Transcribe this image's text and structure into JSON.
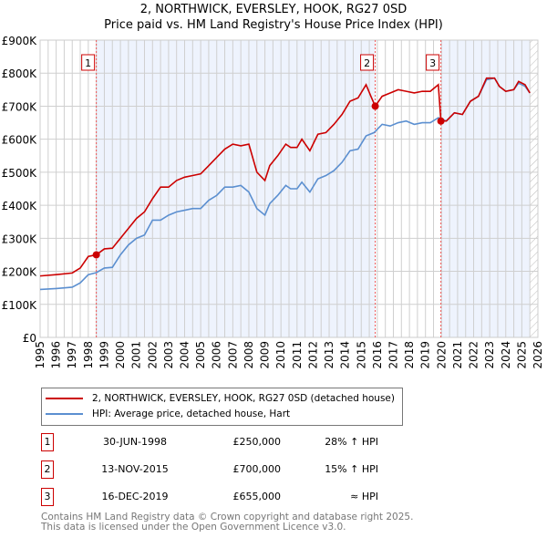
{
  "title_line1": "2, NORTHWICK, EVERSLEY, HOOK, RG27 0SD",
  "title_line2": "Price paid vs. HM Land Registry's House Price Index (HPI)",
  "chart_data": {
    "type": "line",
    "title": "2, NORTHWICK, EVERSLEY, HOOK, RG27 0SD - Price paid vs. HM Land Registry's House Price Index (HPI)",
    "xlim": [
      1995,
      2026
    ],
    "ylim": [
      0,
      900000
    ],
    "x_ticks": [
      "1995",
      "1996",
      "1997",
      "1998",
      "1999",
      "2000",
      "2001",
      "2002",
      "2003",
      "2004",
      "2005",
      "2006",
      "2007",
      "2008",
      "2009",
      "2010",
      "2011",
      "2012",
      "2013",
      "2014",
      "2015",
      "2016",
      "2017",
      "2018",
      "2019",
      "2020",
      "2021",
      "2022",
      "2023",
      "2024",
      "2025",
      "2026"
    ],
    "y_ticks": [
      {
        "v": 0,
        "label": "£0"
      },
      {
        "v": 100000,
        "label": "£100K"
      },
      {
        "v": 200000,
        "label": "£200K"
      },
      {
        "v": 300000,
        "label": "£300K"
      },
      {
        "v": 400000,
        "label": "£400K"
      },
      {
        "v": 500000,
        "label": "£500K"
      },
      {
        "v": 600000,
        "label": "£600K"
      },
      {
        "v": 700000,
        "label": "£700K"
      },
      {
        "v": 800000,
        "label": "£800K"
      },
      {
        "v": 900000,
        "label": "£900K"
      }
    ],
    "grid": true,
    "series": [
      {
        "name": "2, NORTHWICK, EVERSLEY, HOOK, RG27 0SD (detached house)",
        "color": "#cc0000",
        "points": [
          [
            1995,
            186
          ],
          [
            1996,
            190
          ],
          [
            1997,
            195
          ],
          [
            1997.5,
            210
          ],
          [
            1998,
            245
          ],
          [
            1998.5,
            250
          ],
          [
            1999,
            268
          ],
          [
            1999.5,
            270
          ],
          [
            2000,
            300
          ],
          [
            2000.5,
            330
          ],
          [
            2001,
            360
          ],
          [
            2001.5,
            380
          ],
          [
            2002,
            420
          ],
          [
            2002.5,
            455
          ],
          [
            2003,
            455
          ],
          [
            2003.5,
            475
          ],
          [
            2004,
            485
          ],
          [
            2004.5,
            490
          ],
          [
            2005,
            495
          ],
          [
            2005.5,
            520
          ],
          [
            2006,
            545
          ],
          [
            2006.5,
            570
          ],
          [
            2007,
            585
          ],
          [
            2007.5,
            580
          ],
          [
            2008,
            585
          ],
          [
            2008.5,
            500
          ],
          [
            2009,
            475
          ],
          [
            2009.3,
            520
          ],
          [
            2009.8,
            550
          ],
          [
            2010.3,
            585
          ],
          [
            2010.6,
            575
          ],
          [
            2011,
            575
          ],
          [
            2011.3,
            600
          ],
          [
            2011.8,
            565
          ],
          [
            2012.3,
            615
          ],
          [
            2012.8,
            620
          ],
          [
            2013.3,
            645
          ],
          [
            2013.8,
            675
          ],
          [
            2014.3,
            715
          ],
          [
            2014.8,
            725
          ],
          [
            2015.3,
            765
          ],
          [
            2015.6,
            730
          ],
          [
            2015.87,
            700
          ],
          [
            2016.3,
            730
          ],
          [
            2016.8,
            740
          ],
          [
            2017.3,
            750
          ],
          [
            2017.8,
            745
          ],
          [
            2018.3,
            740
          ],
          [
            2018.8,
            745
          ],
          [
            2019.3,
            745
          ],
          [
            2019.8,
            765
          ],
          [
            2019.96,
            655
          ],
          [
            2020.3,
            655
          ],
          [
            2020.8,
            680
          ],
          [
            2021.3,
            675
          ],
          [
            2021.8,
            715
          ],
          [
            2022.3,
            730
          ],
          [
            2022.8,
            785
          ],
          [
            2023.3,
            785
          ],
          [
            2023.6,
            760
          ],
          [
            2024,
            745
          ],
          [
            2024.5,
            750
          ],
          [
            2024.8,
            775
          ],
          [
            2025.2,
            765
          ],
          [
            2025.5,
            740
          ]
        ]
      },
      {
        "name": "HPI: Average price, detached house, Hart",
        "color": "#5b8fd0",
        "points": [
          [
            1995,
            145
          ],
          [
            1996,
            148
          ],
          [
            1997,
            152
          ],
          [
            1997.5,
            165
          ],
          [
            1998,
            190
          ],
          [
            1998.5,
            196
          ],
          [
            1999,
            210
          ],
          [
            1999.5,
            212
          ],
          [
            2000,
            250
          ],
          [
            2000.5,
            280
          ],
          [
            2001,
            300
          ],
          [
            2001.5,
            310
          ],
          [
            2002,
            355
          ],
          [
            2002.5,
            355
          ],
          [
            2003,
            370
          ],
          [
            2003.5,
            380
          ],
          [
            2004,
            385
          ],
          [
            2004.5,
            390
          ],
          [
            2005,
            390
          ],
          [
            2005.5,
            415
          ],
          [
            2006,
            430
          ],
          [
            2006.5,
            455
          ],
          [
            2007,
            455
          ],
          [
            2007.5,
            460
          ],
          [
            2008,
            440
          ],
          [
            2008.5,
            390
          ],
          [
            2009,
            370
          ],
          [
            2009.3,
            405
          ],
          [
            2009.8,
            430
          ],
          [
            2010.3,
            460
          ],
          [
            2010.6,
            450
          ],
          [
            2011,
            450
          ],
          [
            2011.3,
            470
          ],
          [
            2011.8,
            440
          ],
          [
            2012.3,
            480
          ],
          [
            2012.8,
            490
          ],
          [
            2013.3,
            505
          ],
          [
            2013.8,
            530
          ],
          [
            2014.3,
            565
          ],
          [
            2014.8,
            570
          ],
          [
            2015.3,
            610
          ],
          [
            2015.8,
            620
          ],
          [
            2016.3,
            645
          ],
          [
            2016.8,
            640
          ],
          [
            2017.3,
            650
          ],
          [
            2017.8,
            655
          ],
          [
            2018.3,
            645
          ],
          [
            2018.8,
            650
          ],
          [
            2019.3,
            650
          ],
          [
            2019.8,
            665
          ],
          [
            2020.3,
            655
          ],
          [
            2020.8,
            680
          ],
          [
            2021.3,
            675
          ],
          [
            2021.8,
            715
          ],
          [
            2022.3,
            730
          ],
          [
            2022.8,
            780
          ],
          [
            2023.3,
            785
          ],
          [
            2023.6,
            760
          ],
          [
            2024,
            745
          ],
          [
            2024.5,
            750
          ],
          [
            2024.8,
            770
          ],
          [
            2025.2,
            760
          ],
          [
            2025.5,
            740
          ]
        ]
      }
    ],
    "value_unit": "£ thousands",
    "sales": [
      {
        "label": "1",
        "x": 1998.5,
        "value": 250
      },
      {
        "label": "2",
        "x": 2015.87,
        "value": 700
      },
      {
        "label": "3",
        "x": 2019.96,
        "value": 655
      }
    ],
    "shaded_ranges": [
      [
        1998.5,
        2015.87
      ],
      [
        2019.96,
        2025.5
      ]
    ],
    "hatched_from": 2025.5,
    "legend_placement": "below"
  },
  "legend": {
    "red_label": "2, NORTHWICK, EVERSLEY, HOOK, RG27 0SD (detached house)",
    "blue_label": "HPI: Average price, detached house, Hart"
  },
  "sales_table": [
    {
      "num": "1",
      "date": "30-JUN-1998",
      "price": "£250,000",
      "hpi": "28% ↑ HPI"
    },
    {
      "num": "2",
      "date": "13-NOV-2015",
      "price": "£700,000",
      "hpi": "15% ↑ HPI"
    },
    {
      "num": "3",
      "date": "16-DEC-2019",
      "price": "£655,000",
      "hpi": "≈ HPI"
    }
  ],
  "footer": {
    "line1": "Contains HM Land Registry data © Crown copyright and database right 2025.",
    "line2": "This data is licensed under the Open Government Licence v3.0."
  }
}
